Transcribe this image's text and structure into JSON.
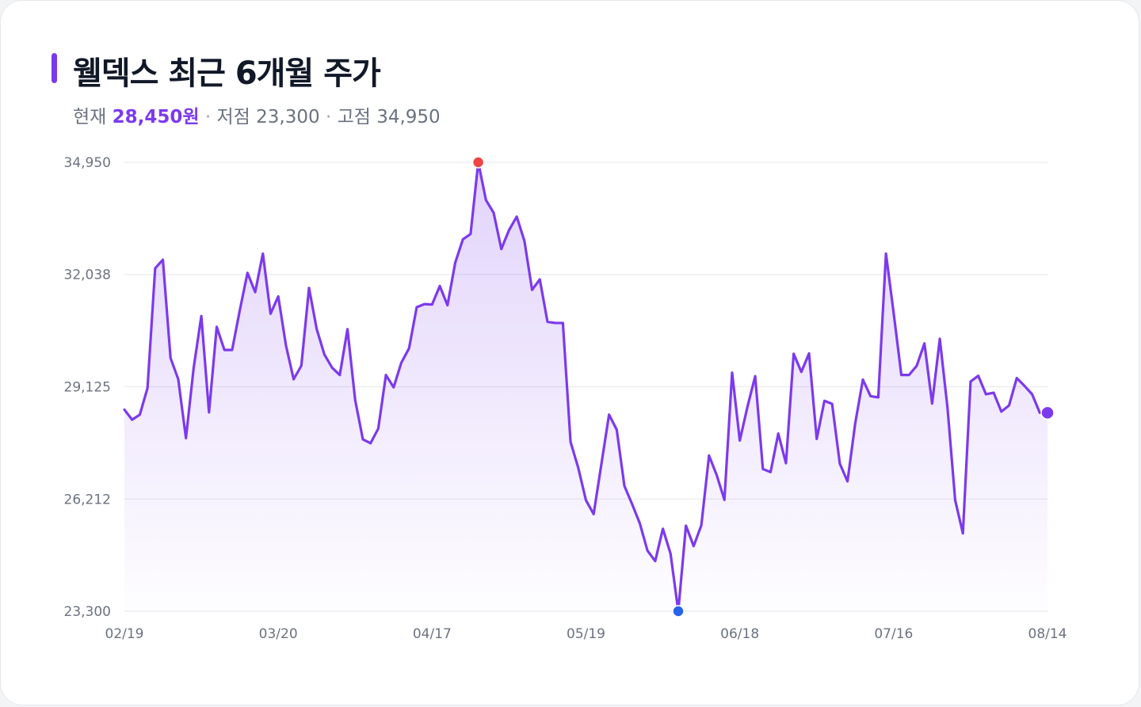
{
  "header": {
    "title": "웰덱스 최근 6개월 주가",
    "current_label": "현재",
    "current_value": "28,450원",
    "low_label": "저점",
    "low_value": "23,300",
    "high_label": "고점",
    "high_value": "34,950",
    "separator": "·"
  },
  "colors": {
    "line": "#7c3aed",
    "fill": "#7c3aed",
    "grid": "#e5e7eb",
    "max_marker": "#ef4444",
    "min_marker": "#2563eb",
    "last_marker": "#7c3aed"
  },
  "chart_data": {
    "type": "line",
    "title": "웰덱스 최근 6개월 주가",
    "xlabel": "",
    "ylabel": "",
    "y_ticks": [
      23300,
      26212,
      29125,
      32038,
      34950
    ],
    "y_tick_labels": [
      "23,300",
      "26,212",
      "29,125",
      "32,038",
      "34,950"
    ],
    "ylim": [
      23300,
      34950
    ],
    "x_tick_labels": [
      "02/19",
      "03/20",
      "04/17",
      "05/19",
      "06/18",
      "07/16",
      "08/14"
    ],
    "x_tick_index": [
      0,
      20,
      40,
      60,
      80,
      100,
      120
    ],
    "grid": true,
    "legend": "none",
    "markers": {
      "max": {
        "index": 46,
        "value": 34950
      },
      "min": {
        "index": 72,
        "value": 23300
      },
      "last": {
        "index": 120,
        "value": 28450
      }
    },
    "series": [
      {
        "values": [
          28530,
          28270,
          28400,
          29090,
          32200,
          32420,
          29870,
          29320,
          27790,
          29610,
          30960,
          28460,
          30680,
          30080,
          30080,
          31110,
          32080,
          31580,
          32580,
          31020,
          31470,
          30200,
          29320,
          29670,
          31690,
          30620,
          29960,
          29620,
          29430,
          30620,
          28780,
          27760,
          27660,
          28040,
          29430,
          29110,
          29750,
          30120,
          31190,
          31270,
          31260,
          31740,
          31240,
          32340,
          32950,
          33090,
          34950,
          33970,
          33640,
          32700,
          33190,
          33540,
          32910,
          31640,
          31910,
          30810,
          30780,
          30780,
          27690,
          27020,
          26180,
          25820,
          27110,
          28400,
          28010,
          26550,
          26080,
          25580,
          24870,
          24600,
          25440,
          24790,
          23300,
          25520,
          24990,
          25530,
          27340,
          26830,
          26190,
          29490,
          27730,
          28610,
          29400,
          26990,
          26910,
          27910,
          27140,
          29980,
          29510,
          29990,
          27770,
          28760,
          28680,
          27130,
          26670,
          28170,
          29310,
          28880,
          28850,
          32580,
          31040,
          29430,
          29430,
          29670,
          30250,
          28690,
          30370,
          28580,
          26180,
          25320,
          29260,
          29410,
          28930,
          28970,
          28480,
          28640,
          29350,
          29150,
          28930,
          28450,
          28450
        ]
      }
    ]
  }
}
